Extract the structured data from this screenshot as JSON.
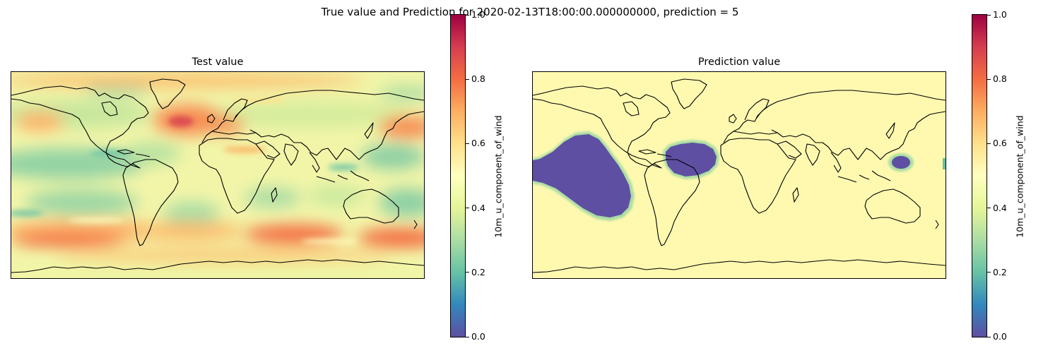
{
  "figure_title": "True value and Prediction for 2020-02-13T18:00:00.000000000, prediction = 5",
  "panels": [
    {
      "title": "Test value",
      "colorbar_label": "10m_u_component_of_wind"
    },
    {
      "title": "Prediction value",
      "colorbar_label": "10m_u_component_of_wind"
    }
  ],
  "colorbar_ticks": [
    "0.0",
    "0.2",
    "0.4",
    "0.6",
    "0.8",
    "1.0"
  ],
  "colors": {
    "cmap": [
      "#5e4fa2",
      "#3288bd",
      "#66c2a5",
      "#abdda4",
      "#e6f598",
      "#ffffbf",
      "#fee08b",
      "#fdae61",
      "#f46d43",
      "#d53e4f",
      "#9e0142"
    ],
    "prediction_background": "#fff9b0",
    "prediction_patch": "#5e4fa2",
    "coastline": "#000000"
  },
  "chart_data": [
    {
      "type": "heatmap",
      "title": "Test value",
      "projection": "PlateCarree (global, lon -180 to 180, lat -90 to 90)",
      "variable": "10m_u_component_of_wind",
      "value_range": [
        0.0,
        1.0
      ],
      "colorbar_label": "10m_u_component_of_wind",
      "colorbar_ticks": [
        0.0,
        0.2,
        0.4,
        0.6,
        0.8,
        1.0
      ],
      "features": [
        {
          "lon": 150,
          "lat": -45,
          "value": 0.75
        },
        {
          "lon": 50,
          "lat": -42,
          "value": 0.78
        },
        {
          "lon": -150,
          "lat": -40,
          "value": 0.72
        },
        {
          "lon": -60,
          "lat": -45,
          "value": 0.7
        },
        {
          "lon": -35,
          "lat": 48,
          "value": 0.9
        },
        {
          "lon": -20,
          "lat": 42,
          "value": 0.7
        },
        {
          "lon": 160,
          "lat": 38,
          "value": 0.7
        },
        {
          "lon": -175,
          "lat": 40,
          "value": 0.68
        },
        {
          "lon": -140,
          "lat": 20,
          "value": 0.3
        },
        {
          "lon": 100,
          "lat": 15,
          "value": 0.3
        },
        {
          "lon": -30,
          "lat": 15,
          "value": 0.35
        },
        {
          "lon": 150,
          "lat": 0,
          "value": 0.35
        }
      ]
    },
    {
      "type": "heatmap",
      "title": "Prediction value",
      "projection": "PlateCarree (global, lon -180 to 180, lat -90 to 90)",
      "variable": "10m_u_component_of_wind",
      "value_range": [
        0.0,
        1.0
      ],
      "background_value": 0.5,
      "colorbar_label": "10m_u_component_of_wind",
      "colorbar_ticks": [
        0.0,
        0.2,
        0.4,
        0.6,
        0.8,
        1.0
      ],
      "low_value_regions": [
        {
          "name": "eastern tropical Pacific",
          "value": 0.0
        },
        {
          "name": "tropical Atlantic",
          "value": 0.0
        },
        {
          "name": "western tropical Pacific",
          "value": 0.0
        },
        {
          "name": "far west Pacific edge",
          "value": 0.1
        }
      ]
    }
  ]
}
